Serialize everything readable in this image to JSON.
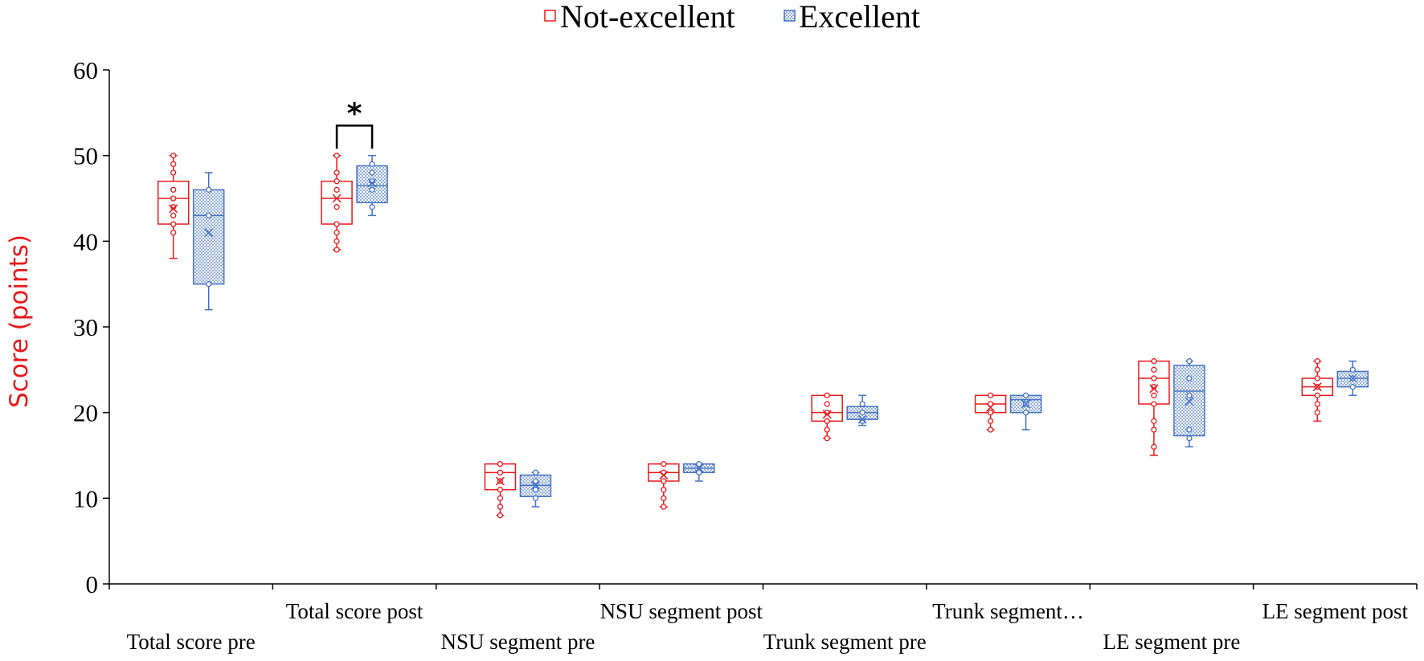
{
  "chart_data": {
    "type": "box",
    "title": "",
    "xlabel": "",
    "ylabel": "Score (points)",
    "ylim": [
      0,
      60
    ],
    "yticks": [
      0,
      10,
      20,
      30,
      40,
      50,
      60
    ],
    "grid": false,
    "legend_position": "top-center",
    "categories": [
      "Total score pre",
      "Total score post",
      "NSU segment pre",
      "NSU segment post",
      "Trunk segment pre",
      "Trunk segment…",
      "LE segment pre",
      "LE segment post"
    ],
    "series": [
      {
        "name": "Not-excellent",
        "color": "#e8191c",
        "fill": "none",
        "boxes": [
          {
            "min": 38,
            "q1": 42,
            "median": 45,
            "q3": 47,
            "max": 50,
            "mean": 43.8,
            "points": [
              50,
              49,
              48,
              46,
              45,
              44,
              43,
              42,
              41
            ]
          },
          {
            "min": 39,
            "q1": 42,
            "median": 45,
            "q3": 47,
            "max": 50,
            "mean": 45,
            "points": [
              50,
              48,
              47,
              46,
              44,
              42,
              41,
              40,
              39
            ]
          },
          {
            "min": 8,
            "q1": 11,
            "median": 13,
            "q3": 14,
            "max": 14,
            "mean": 12,
            "points": [
              14,
              13,
              12,
              11,
              10,
              9,
              8
            ]
          },
          {
            "min": 9,
            "q1": 12,
            "median": 13,
            "q3": 14,
            "max": 14,
            "mean": 12.7,
            "points": [
              14,
              13,
              12,
              11,
              10,
              9
            ]
          },
          {
            "min": 17,
            "q1": 19,
            "median": 20,
            "q3": 22,
            "max": 22,
            "mean": 19.8,
            "points": [
              22,
              21,
              20,
              19,
              18,
              17
            ]
          },
          {
            "min": 18,
            "q1": 20,
            "median": 21,
            "q3": 22,
            "max": 22,
            "mean": 20.6,
            "points": [
              22,
              21,
              20,
              19,
              18
            ]
          },
          {
            "min": 15,
            "q1": 21,
            "median": 24,
            "q3": 26,
            "max": 26,
            "mean": 22.8,
            "points": [
              26,
              25,
              24,
              23,
              22,
              21,
              19,
              18,
              16
            ]
          },
          {
            "min": 19,
            "q1": 22,
            "median": 23,
            "q3": 24,
            "max": 26,
            "mean": 23,
            "points": [
              26,
              25,
              24,
              23,
              22,
              21,
              20
            ]
          }
        ]
      },
      {
        "name": "Excellent",
        "color": "#4472c4",
        "fill": "dotted",
        "boxes": [
          {
            "min": 32,
            "q1": 35,
            "median": 43,
            "q3": 46,
            "max": 48,
            "mean": 41,
            "points": [
              46,
              43,
              35
            ]
          },
          {
            "min": 43,
            "q1": 44.5,
            "median": 46.5,
            "q3": 48.8,
            "max": 50,
            "mean": 46.8,
            "points": [
              49,
              48,
              47,
              46,
              44
            ]
          },
          {
            "min": 9,
            "q1": 10.2,
            "median": 11.5,
            "q3": 12.7,
            "max": 13,
            "mean": 11.5,
            "points": [
              13,
              12,
              11,
              10
            ]
          },
          {
            "min": 12,
            "q1": 13,
            "median": 13.5,
            "q3": 14,
            "max": 14,
            "mean": 13.5,
            "points": [
              14,
              13
            ]
          },
          {
            "min": 18.5,
            "q1": 19.2,
            "median": 20,
            "q3": 20.7,
            "max": 22,
            "mean": 19.2,
            "points": [
              21,
              20,
              19
            ]
          },
          {
            "min": 18,
            "q1": 20,
            "median": 21.5,
            "q3": 22,
            "max": 22,
            "mean": 21,
            "points": [
              22,
              21,
              20
            ]
          },
          {
            "min": 16,
            "q1": 17.3,
            "median": 22.5,
            "q3": 25.5,
            "max": 26,
            "mean": 21.3,
            "points": [
              26,
              24,
              22,
              18,
              17
            ]
          },
          {
            "min": 22,
            "q1": 23,
            "median": 24,
            "q3": 24.8,
            "max": 26,
            "mean": 24,
            "points": [
              25,
              24,
              23
            ]
          }
        ]
      }
    ],
    "annotations": [
      {
        "text": "*",
        "category": "Total score post",
        "y": 53.5
      }
    ]
  }
}
